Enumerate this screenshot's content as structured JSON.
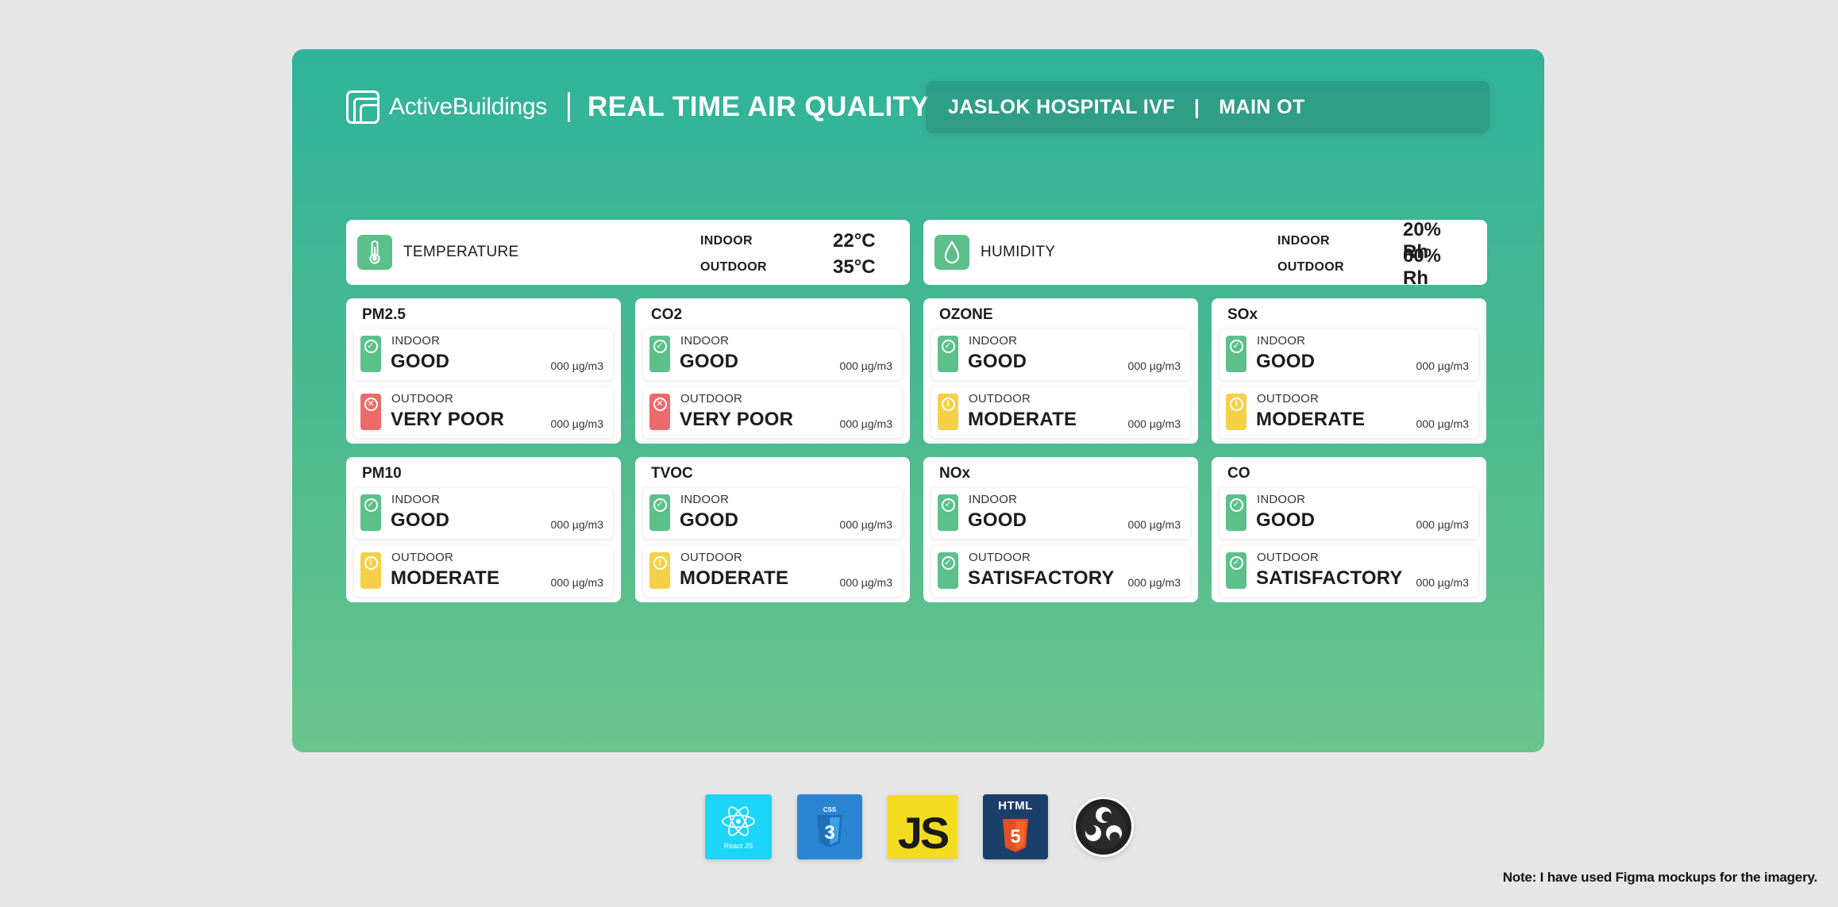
{
  "header": {
    "brand_name": "ActiveBuildings",
    "title": "REAL TIME AIR QUALITY",
    "location": {
      "site": "JASLOK HOSPITAL IVF",
      "separator": "|",
      "room": "MAIN OT"
    }
  },
  "climate": {
    "temperature": {
      "label": "TEMPERATURE",
      "icon": "thermometer-icon",
      "indoor_label": "INDOOR",
      "indoor_value": "22°C",
      "outdoor_label": "OUTDOOR",
      "outdoor_value": "35°C"
    },
    "humidity": {
      "label": "HUMIDITY",
      "icon": "droplet-icon",
      "indoor_label": "INDOOR",
      "indoor_value": "20% Rh",
      "outdoor_label": "OUTDOOR",
      "outdoor_value": "60% Rh"
    }
  },
  "status_colors": {
    "good": "#5cc08a",
    "very_poor": "#ec6a6a",
    "moderate": "#f6d148"
  },
  "pollutants": [
    {
      "name": "PM2.5",
      "indoor": {
        "label": "INDOOR",
        "status": "GOOD",
        "level": "good",
        "value": "000 µg/m3"
      },
      "outdoor": {
        "label": "OUTDOOR",
        "status": "VERY POOR",
        "level": "very_poor",
        "value": "000 µg/m3"
      }
    },
    {
      "name": "CO2",
      "indoor": {
        "label": "INDOOR",
        "status": "GOOD",
        "level": "good",
        "value": "000 µg/m3"
      },
      "outdoor": {
        "label": "OUTDOOR",
        "status": "VERY POOR",
        "level": "very_poor",
        "value": "000 µg/m3"
      }
    },
    {
      "name": "OZONE",
      "indoor": {
        "label": "INDOOR",
        "status": "GOOD",
        "level": "good",
        "value": "000 µg/m3"
      },
      "outdoor": {
        "label": "OUTDOOR",
        "status": "MODERATE",
        "level": "moderate",
        "value": "000 µg/m3"
      }
    },
    {
      "name": "SOx",
      "indoor": {
        "label": "INDOOR",
        "status": "GOOD",
        "level": "good",
        "value": "000 µg/m3"
      },
      "outdoor": {
        "label": "OUTDOOR",
        "status": "MODERATE",
        "level": "moderate",
        "value": "000 µg/m3"
      }
    },
    {
      "name": "PM10",
      "indoor": {
        "label": "INDOOR",
        "status": "GOOD",
        "level": "good",
        "value": "000 µg/m3"
      },
      "outdoor": {
        "label": "OUTDOOR",
        "status": "MODERATE",
        "level": "moderate",
        "value": "000 µg/m3"
      }
    },
    {
      "name": "TVOC",
      "indoor": {
        "label": "INDOOR",
        "status": "GOOD",
        "level": "good",
        "value": "000 µg/m3"
      },
      "outdoor": {
        "label": "OUTDOOR",
        "status": "MODERATE",
        "level": "moderate",
        "value": "000 µg/m3"
      }
    },
    {
      "name": "NOx",
      "indoor": {
        "label": "INDOOR",
        "status": "GOOD",
        "level": "good",
        "value": "000 µg/m3"
      },
      "outdoor": {
        "label": "OUTDOOR",
        "status": "SATISFACTORY",
        "level": "good",
        "value": "000 µg/m3"
      }
    },
    {
      "name": "CO",
      "indoor": {
        "label": "INDOOR",
        "status": "GOOD",
        "level": "good",
        "value": "000 µg/m3"
      },
      "outdoor": {
        "label": "OUTDOOR",
        "status": "SATISFACTORY",
        "level": "good",
        "value": "000 µg/m3"
      }
    }
  ],
  "tech_stack": {
    "react_label": "React JS",
    "css_label": "CSS",
    "js_label": "JS",
    "html_label": "HTML"
  },
  "footer": {
    "note": "Note: I have used Figma mockups for the imagery."
  }
}
